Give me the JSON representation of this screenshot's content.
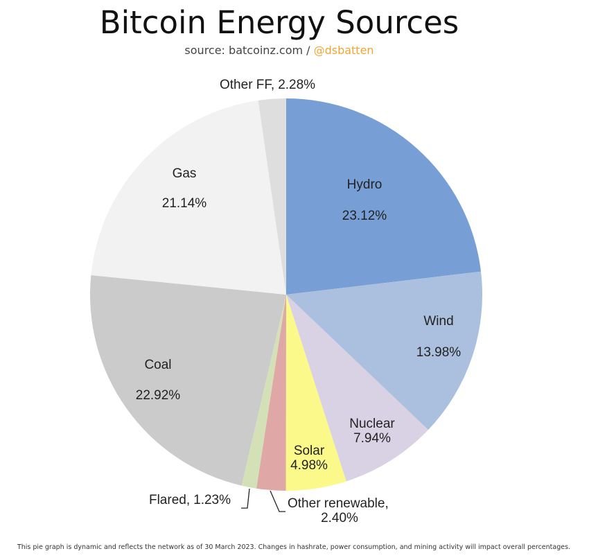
{
  "chart_data": {
    "type": "pie",
    "title": "Bitcoin Energy Sources",
    "source": "source: batcoinz.com /",
    "handle": "@dsbatten",
    "footnote": "This pie graph is dynamic and reflects the network as of 30 March 2023. Changes in hashrate, power consumption, and mining activity will impact overall percentages.",
    "label_separator": ",",
    "categories": [
      "Hydro",
      "Wind",
      "Nuclear",
      "Solar",
      "Other renewable",
      "Flared",
      "Coal",
      "Gas",
      "Other FF"
    ],
    "values": [
      23.12,
      13.98,
      7.94,
      4.98,
      2.4,
      1.23,
      22.92,
      21.14,
      2.28
    ],
    "value_labels": [
      "23.12%",
      "13.98%",
      "7.94%",
      "4.98%",
      "2.40%",
      "1.23%",
      "22.92%",
      "21.14%",
      "2.28%"
    ],
    "colors": [
      "#779fd6",
      "#aac0de",
      "#d9d2e4",
      "#fbf98a",
      "#dfa8a6",
      "#d4e0b5",
      "#cbcbcb",
      "#f2f2f2",
      "#dedede"
    ]
  }
}
